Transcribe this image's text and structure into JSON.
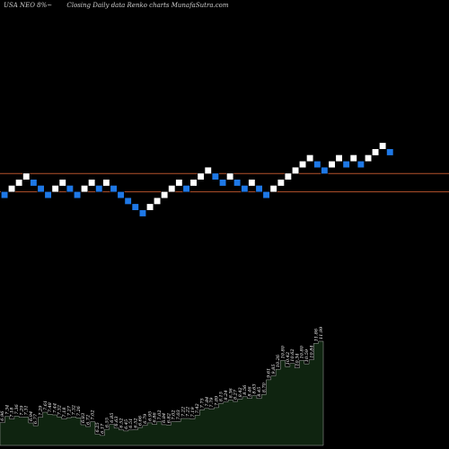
{
  "header": {
    "symbol_text": "USA NEO 8%~",
    "subtitle_text": "Closing Daily data  Renko  charts MunafaSutra.com"
  },
  "colors": {
    "background": "#000000",
    "up_brick": "#ffffff",
    "down_brick": "#1e78e6",
    "hline": "#b4532c",
    "volume_fill": "#0f2410",
    "volume_stroke": "#cfcfcf"
  },
  "chart_data": {
    "type": "renko",
    "bricks": [
      {
        "level": 0,
        "dir": "down"
      },
      {
        "level": 1,
        "dir": "up"
      },
      {
        "level": 2,
        "dir": "up"
      },
      {
        "level": 3,
        "dir": "up"
      },
      {
        "level": 2,
        "dir": "down"
      },
      {
        "level": 1,
        "dir": "down"
      },
      {
        "level": 0,
        "dir": "down"
      },
      {
        "level": 1,
        "dir": "up"
      },
      {
        "level": 2,
        "dir": "up"
      },
      {
        "level": 1,
        "dir": "down"
      },
      {
        "level": 0,
        "dir": "down"
      },
      {
        "level": 1,
        "dir": "up"
      },
      {
        "level": 2,
        "dir": "up"
      },
      {
        "level": 1,
        "dir": "down"
      },
      {
        "level": 2,
        "dir": "up"
      },
      {
        "level": 1,
        "dir": "down"
      },
      {
        "level": 0,
        "dir": "down"
      },
      {
        "level": -1,
        "dir": "down"
      },
      {
        "level": -2,
        "dir": "down"
      },
      {
        "level": -3,
        "dir": "down"
      },
      {
        "level": -2,
        "dir": "up"
      },
      {
        "level": -1,
        "dir": "up"
      },
      {
        "level": 0,
        "dir": "up"
      },
      {
        "level": 1,
        "dir": "up"
      },
      {
        "level": 2,
        "dir": "up"
      },
      {
        "level": 1,
        "dir": "down"
      },
      {
        "level": 2,
        "dir": "up"
      },
      {
        "level": 3,
        "dir": "up"
      },
      {
        "level": 4,
        "dir": "up"
      },
      {
        "level": 3,
        "dir": "down"
      },
      {
        "level": 2,
        "dir": "down"
      },
      {
        "level": 3,
        "dir": "up"
      },
      {
        "level": 2,
        "dir": "down"
      },
      {
        "level": 1,
        "dir": "down"
      },
      {
        "level": 2,
        "dir": "up"
      },
      {
        "level": 1,
        "dir": "down"
      },
      {
        "level": 0,
        "dir": "down"
      },
      {
        "level": 1,
        "dir": "up"
      },
      {
        "level": 2,
        "dir": "up"
      },
      {
        "level": 3,
        "dir": "up"
      },
      {
        "level": 4,
        "dir": "up"
      },
      {
        "level": 5,
        "dir": "up"
      },
      {
        "level": 6,
        "dir": "up"
      },
      {
        "level": 5,
        "dir": "down"
      },
      {
        "level": 4,
        "dir": "down"
      },
      {
        "level": 5,
        "dir": "up"
      },
      {
        "level": 6,
        "dir": "up"
      },
      {
        "level": 5,
        "dir": "down"
      },
      {
        "level": 6,
        "dir": "up"
      },
      {
        "level": 5,
        "dir": "down"
      },
      {
        "level": 6,
        "dir": "up"
      },
      {
        "level": 7,
        "dir": "up"
      },
      {
        "level": 8,
        "dir": "up"
      },
      {
        "level": 7,
        "dir": "down"
      }
    ],
    "reference_lines": [
      {
        "level": 3.5
      },
      {
        "level": 0.5
      }
    ],
    "volume_labels": [
      "6.96",
      "7.34",
      "7.18",
      "7.36",
      "7.29",
      "7.31",
      "6.94",
      "6.77",
      "7.29",
      "7.61",
      "7.48",
      "7.44",
      "7.32",
      "7.18",
      "7.27",
      "7.32",
      "7.26",
      "6.83",
      "6.72",
      "7.02",
      "6.25",
      "6.17",
      "6.55",
      "6.85",
      "6.63",
      "6.52",
      "6.45",
      "6.51",
      "6.52",
      "6.66",
      "6.79",
      "6.95",
      "6.86",
      "7.02",
      "6.84",
      "6.82",
      "7.02",
      "7.03",
      "7.22",
      "7.22",
      "7.19",
      "7.42",
      "7.75",
      "7.84",
      "7.79",
      "7.89",
      "8.15",
      "8.24",
      "8.36",
      "8.27",
      "8.42",
      "8.56",
      "8.46",
      "8.63",
      "8.45",
      "8.70",
      "9.61",
      "9.85",
      "10.26",
      "10.80",
      "10.42",
      "10.62",
      "10.34",
      "10.80",
      "10.59",
      "10.84",
      "11.86",
      "11.99"
    ]
  }
}
